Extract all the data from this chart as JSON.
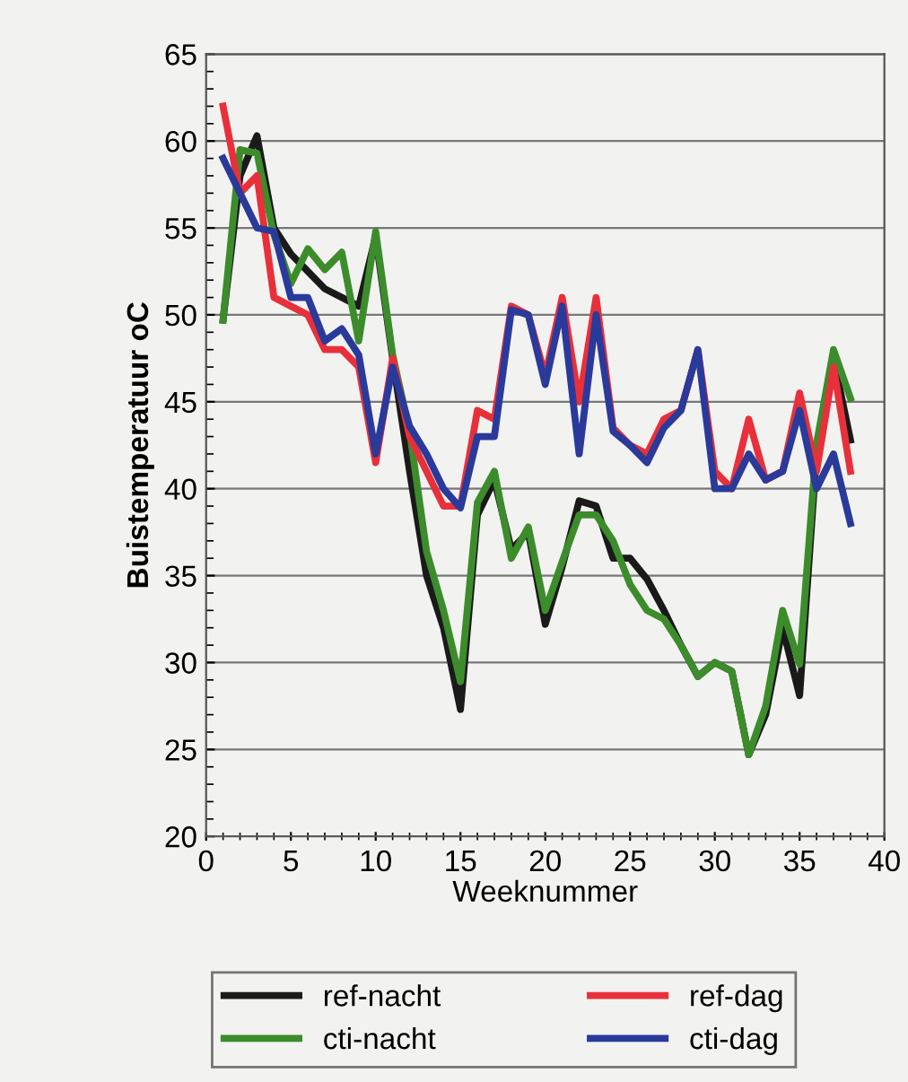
{
  "chart_data": {
    "type": "line",
    "xlabel": "Weeknummer",
    "ylabel": "Buistemperatuur oC",
    "x": [
      1,
      2,
      3,
      4,
      5,
      6,
      7,
      8,
      9,
      10,
      11,
      12,
      13,
      14,
      15,
      16,
      17,
      18,
      19,
      20,
      21,
      22,
      23,
      24,
      25,
      26,
      27,
      28,
      29,
      30,
      31,
      32,
      33,
      34,
      35,
      36,
      37,
      38
    ],
    "series": [
      {
        "name": "ref-nacht",
        "color": "#1a1a1a",
        "values": [
          49.7,
          58,
          60.3,
          55,
          53.5,
          52.5,
          51.5,
          51,
          50.5,
          54.5,
          47.5,
          41,
          35,
          32,
          27.3,
          38.5,
          40.5,
          36.5,
          37.5,
          32.2,
          35.5,
          39.3,
          39,
          36,
          36,
          34.8,
          33,
          31,
          29.2,
          30,
          29.5,
          24.7,
          27,
          32,
          28.1,
          42,
          47.5,
          42.8
        ]
      },
      {
        "name": "cti-nacht",
        "color": "#3c8c2c",
        "values": [
          49.7,
          59.5,
          59.3,
          54.6,
          51.8,
          53.8,
          52.6,
          53.6,
          48.5,
          54.8,
          47.7,
          43.3,
          36.4,
          33,
          28.9,
          39.2,
          41,
          36,
          37.8,
          33,
          35.8,
          38.5,
          38.5,
          37,
          34.5,
          33,
          32.5,
          31,
          29.2,
          30,
          29.5,
          24.7,
          27.5,
          33,
          29.9,
          42.6,
          48,
          45.2
        ]
      },
      {
        "name": "ref-dag",
        "color": "#e8303a",
        "values": [
          62,
          57,
          58,
          51,
          50.5,
          50,
          48,
          48,
          47,
          41.5,
          47.5,
          43,
          41,
          39,
          39,
          44.5,
          44,
          50.5,
          50,
          46.5,
          51,
          45,
          51,
          43.5,
          42.5,
          42,
          44,
          44.5,
          48,
          41,
          40,
          44,
          40.5,
          41,
          45.5,
          41,
          47,
          41
        ]
      },
      {
        "name": "cti-dag",
        "color": "#2a3a9a",
        "values": [
          59,
          57,
          55,
          54.8,
          51,
          51,
          48.5,
          49.2,
          47.7,
          42,
          47,
          43.6,
          42,
          40,
          38.9,
          43,
          43,
          50.3,
          50,
          46,
          50.5,
          42,
          50,
          43.3,
          42.5,
          41.5,
          43.5,
          44.5,
          48,
          40,
          40,
          42,
          40.5,
          41,
          44.5,
          40,
          42,
          38
        ]
      }
    ],
    "xlim": [
      0,
      40
    ],
    "xticks": [
      0,
      5,
      10,
      15,
      20,
      25,
      30,
      35,
      40
    ],
    "ylim": [
      20,
      65
    ],
    "yticks": [
      20,
      25,
      30,
      35,
      40,
      45,
      50,
      55,
      60,
      65
    ],
    "grid": "y",
    "legend": "bottom",
    "marker": "none",
    "line_style": "solid"
  }
}
